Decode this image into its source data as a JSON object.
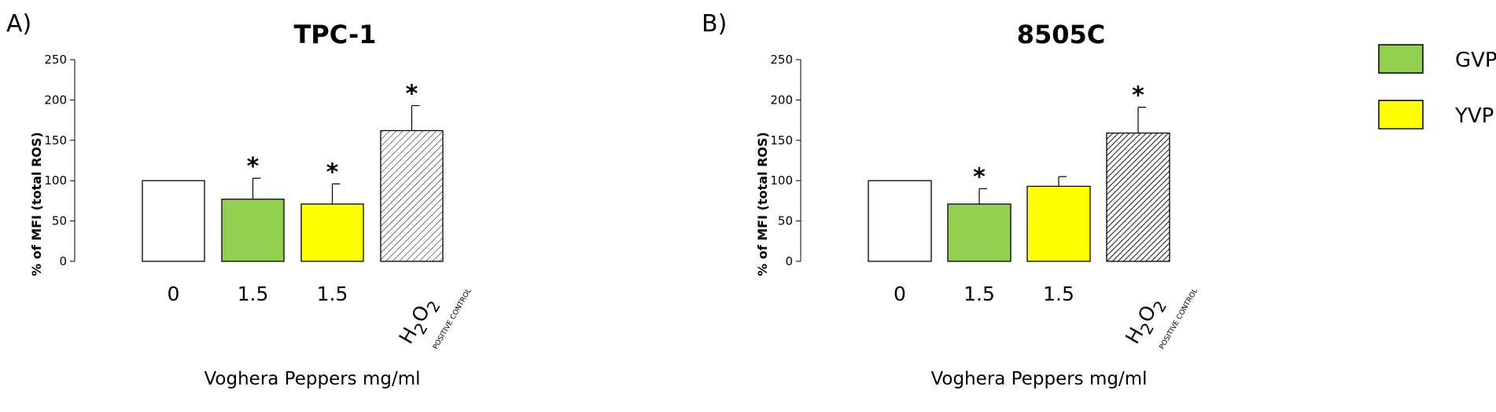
{
  "chart_data": [
    {
      "type": "bar",
      "panel": "A)",
      "title": "TPC-1",
      "xlabel": "Voghera Peppers mg/ml",
      "ylabel": "% of MFI (total ROS)",
      "ylim": [
        0,
        250
      ],
      "yticks": [
        "0",
        "50",
        "100",
        "150",
        "200",
        "250"
      ],
      "categories": [
        "0",
        "1.5",
        "1.5",
        "H2O2"
      ],
      "category_sub": [
        "",
        "",
        "",
        "POSITIVE CONTROL"
      ],
      "values": [
        100,
        77,
        71,
        162
      ],
      "errors": [
        0,
        26,
        25,
        31
      ],
      "significance": [
        "",
        "*",
        "*",
        "*"
      ],
      "fills": [
        "white",
        "green",
        "yellow",
        "hatch-light"
      ]
    },
    {
      "type": "bar",
      "panel": "B)",
      "title": "8505C",
      "xlabel": "Voghera Peppers mg/ml",
      "ylabel": "% of MFI (total ROS)",
      "ylim": [
        0,
        250
      ],
      "yticks": [
        "0",
        "50",
        "100",
        "150",
        "200",
        "250"
      ],
      "categories": [
        "0",
        "1.5",
        "1.5",
        "H2O2"
      ],
      "category_sub": [
        "",
        "",
        "",
        "POSITIVE CONTROL"
      ],
      "values": [
        100,
        71,
        93,
        159
      ],
      "errors": [
        0,
        19,
        12,
        32
      ],
      "significance": [
        "",
        "*",
        "",
        "*"
      ],
      "fills": [
        "white",
        "green",
        "yellow",
        "hatch-dense"
      ]
    }
  ],
  "legend": {
    "items": [
      {
        "label": "GVP",
        "color": "#92d050"
      },
      {
        "label": "YVP",
        "color": "#ffff00"
      }
    ]
  },
  "colors": {
    "green": "#92d050",
    "yellow": "#ffff00",
    "white": "#ffffff"
  }
}
